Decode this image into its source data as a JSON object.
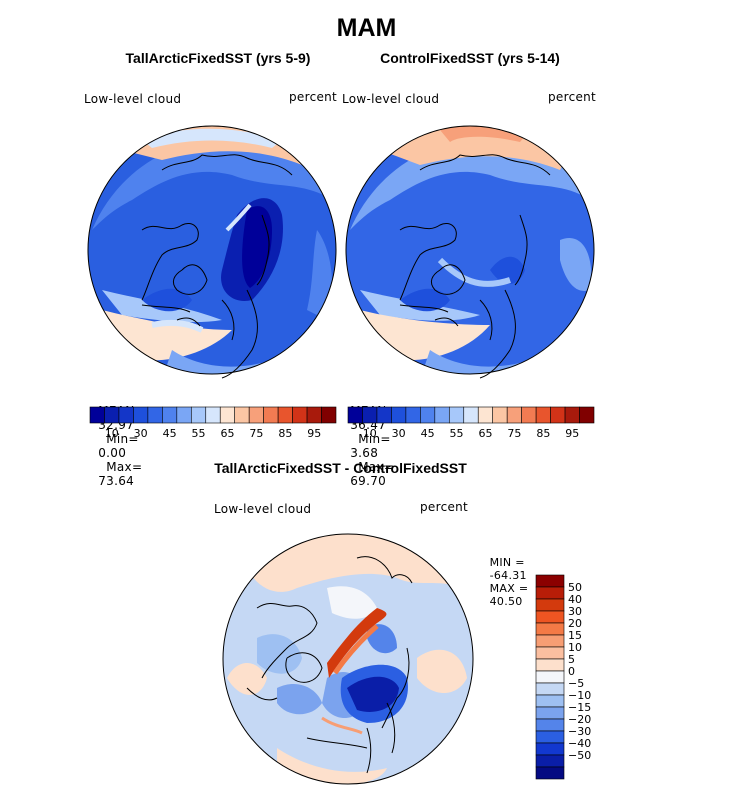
{
  "figure": {
    "title": "MAM",
    "panels": [
      {
        "title": "TallArcticFixedSST (yrs 5-9)",
        "variable": "Low-level cloud",
        "units": "percent",
        "stats": {
          "mean_label": "MEAN=",
          "mean": "32.97",
          "min_label": "Min=",
          "min": "0.00",
          "max_label": "Max=",
          "max": "73.64"
        }
      },
      {
        "title": "ControlFixedSST (yrs 5-14)",
        "variable": "Low-level cloud",
        "units": "percent",
        "stats": {
          "mean_label": "MEAN=",
          "mean": "36.47",
          "min_label": "Min=",
          "min": "3.68",
          "max_label": "Max=",
          "max": "69.70"
        }
      }
    ],
    "colorbar_top": {
      "colors": [
        "#000099",
        "#0a1fb0",
        "#1436c8",
        "#1e50dc",
        "#3266e6",
        "#4f82ee",
        "#7aa6f5",
        "#a7c8fa",
        "#d6e6fc",
        "#fde5d2",
        "#fbc6a4",
        "#f7a07a",
        "#f27b52",
        "#e8552d",
        "#d23318",
        "#a81a0c",
        "#800000"
      ],
      "tick_labels": [
        "10",
        "30",
        "45",
        "55",
        "65",
        "75",
        "85",
        "95"
      ]
    },
    "difference_panel": {
      "title": "TallArcticFixedSST - ControlFixedSST",
      "variable": "Low-level cloud",
      "units": "percent",
      "stats": {
        "min_label": "MIN =",
        "min": "-64.31",
        "max_label": "MAX =",
        "max": "40.50"
      }
    },
    "colorbar_diff": {
      "colors": [
        "#8b0000",
        "#b81d08",
        "#d33a0d",
        "#ee5522",
        "#f47a46",
        "#f79e74",
        "#fbbfa0",
        "#fde0cc",
        "#f4f6fa",
        "#c5d8f4",
        "#9ec0f2",
        "#7ba3ee",
        "#5484ea",
        "#2b5fe2",
        "#1238cf",
        "#0a1ea8",
        "#040a82"
      ],
      "tick_labels": [
        "50",
        "40",
        "30",
        "20",
        "15",
        "10",
        "5",
        "0",
        "−5",
        "−10",
        "−15",
        "−20",
        "−30",
        "−40",
        "−50"
      ]
    }
  }
}
